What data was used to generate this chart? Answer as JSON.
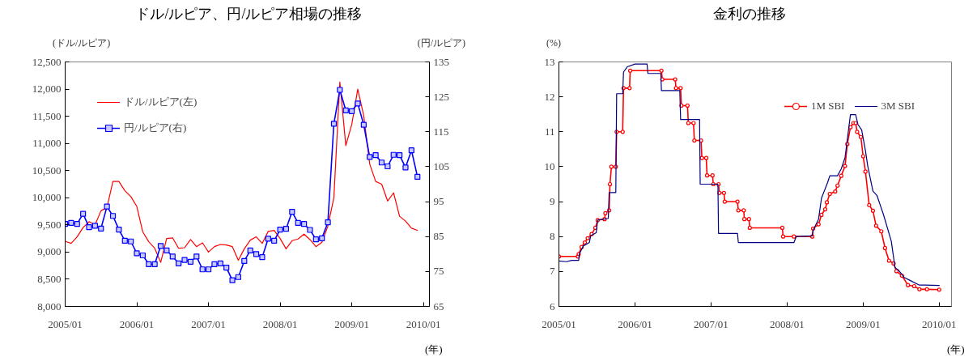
{
  "chart_data": [
    {
      "type": "line",
      "title": "ドル/ルピア、円/ルピア相場の推移",
      "ylabel": "(ドル/ルピア)",
      "y2label": "(円/ルピア)",
      "annotations": [
        "(年)"
      ],
      "x": [
        "2005-01",
        "2005-02",
        "2005-03",
        "2005-04",
        "2005-05",
        "2005-06",
        "2005-07",
        "2005-08",
        "2005-09",
        "2005-10",
        "2005-11",
        "2005-12",
        "2006-01",
        "2006-02",
        "2006-03",
        "2006-04",
        "2006-05",
        "2006-06",
        "2006-07",
        "2006-08",
        "2006-09",
        "2006-10",
        "2006-11",
        "2006-12",
        "2007-01",
        "2007-02",
        "2007-03",
        "2007-04",
        "2007-05",
        "2007-06",
        "2007-07",
        "2007-08",
        "2007-09",
        "2007-10",
        "2007-11",
        "2007-12",
        "2008-01",
        "2008-02",
        "2008-03",
        "2008-04",
        "2008-05",
        "2008-06",
        "2008-07",
        "2008-08",
        "2008-09",
        "2008-10",
        "2008-11",
        "2008-12",
        "2009-01",
        "2009-02",
        "2009-03",
        "2009-04",
        "2009-05",
        "2009-06",
        "2009-07",
        "2009-08",
        "2009-09",
        "2009-10",
        "2009-11",
        "2009-12"
      ],
      "xlim": [
        "2005-01",
        "2010-02"
      ],
      "xticks": [
        {
          "value": "2005-01",
          "label": "2005/01"
        },
        {
          "value": "2006-01",
          "label": "2006/01"
        },
        {
          "value": "2007-01",
          "label": "2007/01"
        },
        {
          "value": "2008-01",
          "label": "2008/01"
        },
        {
          "value": "2009-01",
          "label": "2009/01"
        },
        {
          "value": "2010-01",
          "label": "2010/01"
        }
      ],
      "ylim": [
        8000,
        12500
      ],
      "yticks": [
        {
          "value": 8000,
          "label": "8,000"
        },
        {
          "value": 8500,
          "label": "8,500"
        },
        {
          "value": 9000,
          "label": "9,000"
        },
        {
          "value": 9500,
          "label": "9,500"
        },
        {
          "value": 10000,
          "label": "10,000"
        },
        {
          "value": 10500,
          "label": "10,500"
        },
        {
          "value": 11000,
          "label": "11,000"
        },
        {
          "value": 11500,
          "label": "11,500"
        },
        {
          "value": 12000,
          "label": "12,000"
        },
        {
          "value": 12500,
          "label": "12,500"
        }
      ],
      "y2lim": [
        65,
        135
      ],
      "y2ticks": [
        65,
        75,
        85,
        95,
        105,
        115,
        125,
        135
      ],
      "legend": "top left",
      "series": [
        {
          "name": "ドル/ルピア(左)",
          "color": "#ff0000",
          "values": [
            9200,
            9160,
            9280,
            9450,
            9560,
            9500,
            9760,
            9820,
            10300,
            10300,
            10130,
            10020,
            9840,
            9370,
            9190,
            9070,
            8810,
            9250,
            9260,
            9070,
            9080,
            9230,
            9100,
            9170,
            9000,
            9100,
            9140,
            9130,
            9100,
            8850,
            9060,
            9220,
            9280,
            9160,
            9380,
            9400,
            9250,
            9060,
            9210,
            9240,
            9330,
            9230,
            9100,
            9180,
            9480,
            10000,
            12130,
            10960,
            11350,
            12000,
            11510,
            10620,
            10300,
            10250,
            9940,
            10090,
            9660,
            9570,
            9440,
            9400
          ]
        },
        {
          "name": "円/ルピア(右)",
          "color": "#0000ff",
          "axis": "y2",
          "marker": "square",
          "values": [
            88.6,
            88.9,
            88.6,
            91.5,
            87.7,
            88.1,
            87.3,
            93.6,
            90.9,
            87.0,
            83.8,
            83.6,
            80.2,
            79.6,
            77.1,
            77.1,
            82.3,
            81.0,
            79.3,
            77.3,
            78.3,
            77.8,
            79.3,
            75.6,
            75.6,
            77.1,
            77.3,
            76.1,
            72.5,
            73.4,
            78.0,
            81.0,
            80.0,
            79.1,
            84.4,
            83.8,
            87.0,
            87.2,
            92.1,
            88.9,
            88.6,
            86.9,
            84.2,
            84.5,
            89.1,
            117.3,
            127.0,
            121.1,
            120.9,
            123.1,
            117.0,
            107.8,
            108.3,
            106.2,
            105.1,
            108.4,
            108.3,
            104.8,
            109.7,
            102.1
          ]
        }
      ]
    },
    {
      "type": "line",
      "title": "金利の推移",
      "ylabel": "(%)",
      "annotations": [
        "(年)"
      ],
      "xlim": [
        "2005-01-01",
        "2010-03-01"
      ],
      "xticks": [
        {
          "value": "2005-01",
          "label": "2005/01"
        },
        {
          "value": "2006-01",
          "label": "2006/01"
        },
        {
          "value": "2007-01",
          "label": "2007/01"
        },
        {
          "value": "2008-01",
          "label": "2008/01"
        },
        {
          "value": "2009-01",
          "label": "2009/01"
        },
        {
          "value": "2010-01",
          "label": "2010/01"
        }
      ],
      "ylim": [
        6,
        13
      ],
      "yticks": [
        6,
        7,
        8,
        9,
        10,
        11,
        12,
        13
      ],
      "legend": "top right",
      "series": [
        {
          "name": "1M SBI",
          "color": "#ff0000",
          "marker": "circle",
          "x": [
            "2005-01-01",
            "2005-04-02",
            "2005-04-06",
            "2005-04-20",
            "2005-05-05",
            "2005-05-19",
            "2005-06-07",
            "2005-06-25",
            "2005-07-06",
            "2005-08-08",
            "2005-08-12",
            "2005-08-30",
            "2005-09-03",
            "2005-09-10",
            "2005-10-01",
            "2005-10-05",
            "2005-11-03",
            "2005-11-07",
            "2005-12-06",
            "2005-12-09",
            "2006-05-08",
            "2006-05-12",
            "2006-07-13",
            "2006-07-17",
            "2006-08-08",
            "2006-08-12",
            "2006-09-10",
            "2006-09-14",
            "2006-10-09",
            "2006-10-13",
            "2006-11-14",
            "2006-11-18",
            "2006-12-09",
            "2006-12-13",
            "2007-01-08",
            "2007-01-12",
            "2007-02-06",
            "2007-02-10",
            "2007-03-04",
            "2007-03-08",
            "2007-05-08",
            "2007-05-12",
            "2007-06-07",
            "2007-06-10",
            "2007-07-02",
            "2007-07-06",
            "2007-12-09",
            "2007-12-13",
            "2008-02-03",
            "2008-05-01",
            "2008-05-05",
            "2008-05-31",
            "2008-06-14",
            "2008-07-02",
            "2008-07-10",
            "2008-07-24",
            "2008-08-19",
            "2008-08-30",
            "2008-09-17",
            "2008-10-05",
            "2008-10-16",
            "2008-10-31",
            "2008-11-14",
            "2008-11-25",
            "2008-12-02",
            "2008-12-20",
            "2009-01-01",
            "2009-01-12",
            "2009-01-30",
            "2009-02-17",
            "2009-03-04",
            "2009-03-29",
            "2009-04-16",
            "2009-05-05",
            "2009-05-27",
            "2009-06-10",
            "2009-07-06",
            "2009-08-04",
            "2009-09-03",
            "2009-09-28",
            "2009-11-03",
            "2010-01-01"
          ],
          "values": [
            7.43,
            7.43,
            7.5,
            7.7,
            7.83,
            7.95,
            8.07,
            8.25,
            8.47,
            8.5,
            8.67,
            8.75,
            9.5,
            10.0,
            10.0,
            11.0,
            11.0,
            12.25,
            12.25,
            12.75,
            12.75,
            12.5,
            12.5,
            12.25,
            12.25,
            11.75,
            11.75,
            11.25,
            11.25,
            10.75,
            10.75,
            10.25,
            10.25,
            9.75,
            9.75,
            9.5,
            9.5,
            9.25,
            9.25,
            9.0,
            9.0,
            8.75,
            8.75,
            8.5,
            8.5,
            8.25,
            8.25,
            8.0,
            8.0,
            8.0,
            8.23,
            8.35,
            8.62,
            8.78,
            8.98,
            9.22,
            9.29,
            9.46,
            9.74,
            10.02,
            10.65,
            11.13,
            11.25,
            11.25,
            11.0,
            10.85,
            10.3,
            9.86,
            8.9,
            8.74,
            8.31,
            8.15,
            7.67,
            7.31,
            7.23,
            7.01,
            6.88,
            6.61,
            6.58,
            6.49,
            6.49,
            6.48
          ]
        },
        {
          "name": "3M SBI",
          "color": "#000080",
          "x": [
            "2005-01-01",
            "2005-02-06",
            "2005-03-04",
            "2005-04-06",
            "2005-04-09",
            "2005-04-28",
            "2005-05-27",
            "2005-06-03",
            "2005-06-29",
            "2005-07-06",
            "2005-08-26",
            "2005-08-30",
            "2005-10-01",
            "2005-10-05",
            "2005-11-03",
            "2005-11-07",
            "2005-11-25",
            "2006-01-01",
            "2006-02-28",
            "2006-03-04",
            "2006-05-05",
            "2006-05-08",
            "2006-08-04",
            "2006-08-08",
            "2006-11-07",
            "2006-11-10",
            "2007-02-03",
            "2007-02-06",
            "2007-05-08",
            "2007-05-12",
            "2008-02-03",
            "2008-02-14",
            "2008-05-01",
            "2008-05-05",
            "2008-05-31",
            "2008-06-14",
            "2008-07-13",
            "2008-07-24",
            "2008-08-30",
            "2008-09-17",
            "2008-10-05",
            "2008-10-31",
            "2008-11-25",
            "2008-12-06",
            "2008-12-24",
            "2009-01-12",
            "2009-01-23",
            "2009-02-17",
            "2009-03-08",
            "2009-04-09",
            "2009-05-16",
            "2009-06-03",
            "2009-06-21",
            "2009-07-17",
            "2009-08-12",
            "2009-09-28",
            "2009-10-24",
            "2010-01-01"
          ],
          "values": [
            7.3,
            7.28,
            7.32,
            7.32,
            7.5,
            7.73,
            7.83,
            8.03,
            8.11,
            8.47,
            8.52,
            9.26,
            9.26,
            12.09,
            12.09,
            12.71,
            12.86,
            12.94,
            12.94,
            12.67,
            12.67,
            12.18,
            12.18,
            11.35,
            11.35,
            9.5,
            9.5,
            8.09,
            8.09,
            7.83,
            7.83,
            8.0,
            8.02,
            8.18,
            8.5,
            9.1,
            9.54,
            9.74,
            9.74,
            9.94,
            10.26,
            11.49,
            11.49,
            11.21,
            11.05,
            10.46,
            10.02,
            9.3,
            9.18,
            8.62,
            7.87,
            7.11,
            7.03,
            6.83,
            6.75,
            6.61,
            6.61,
            6.6
          ]
        }
      ]
    }
  ]
}
